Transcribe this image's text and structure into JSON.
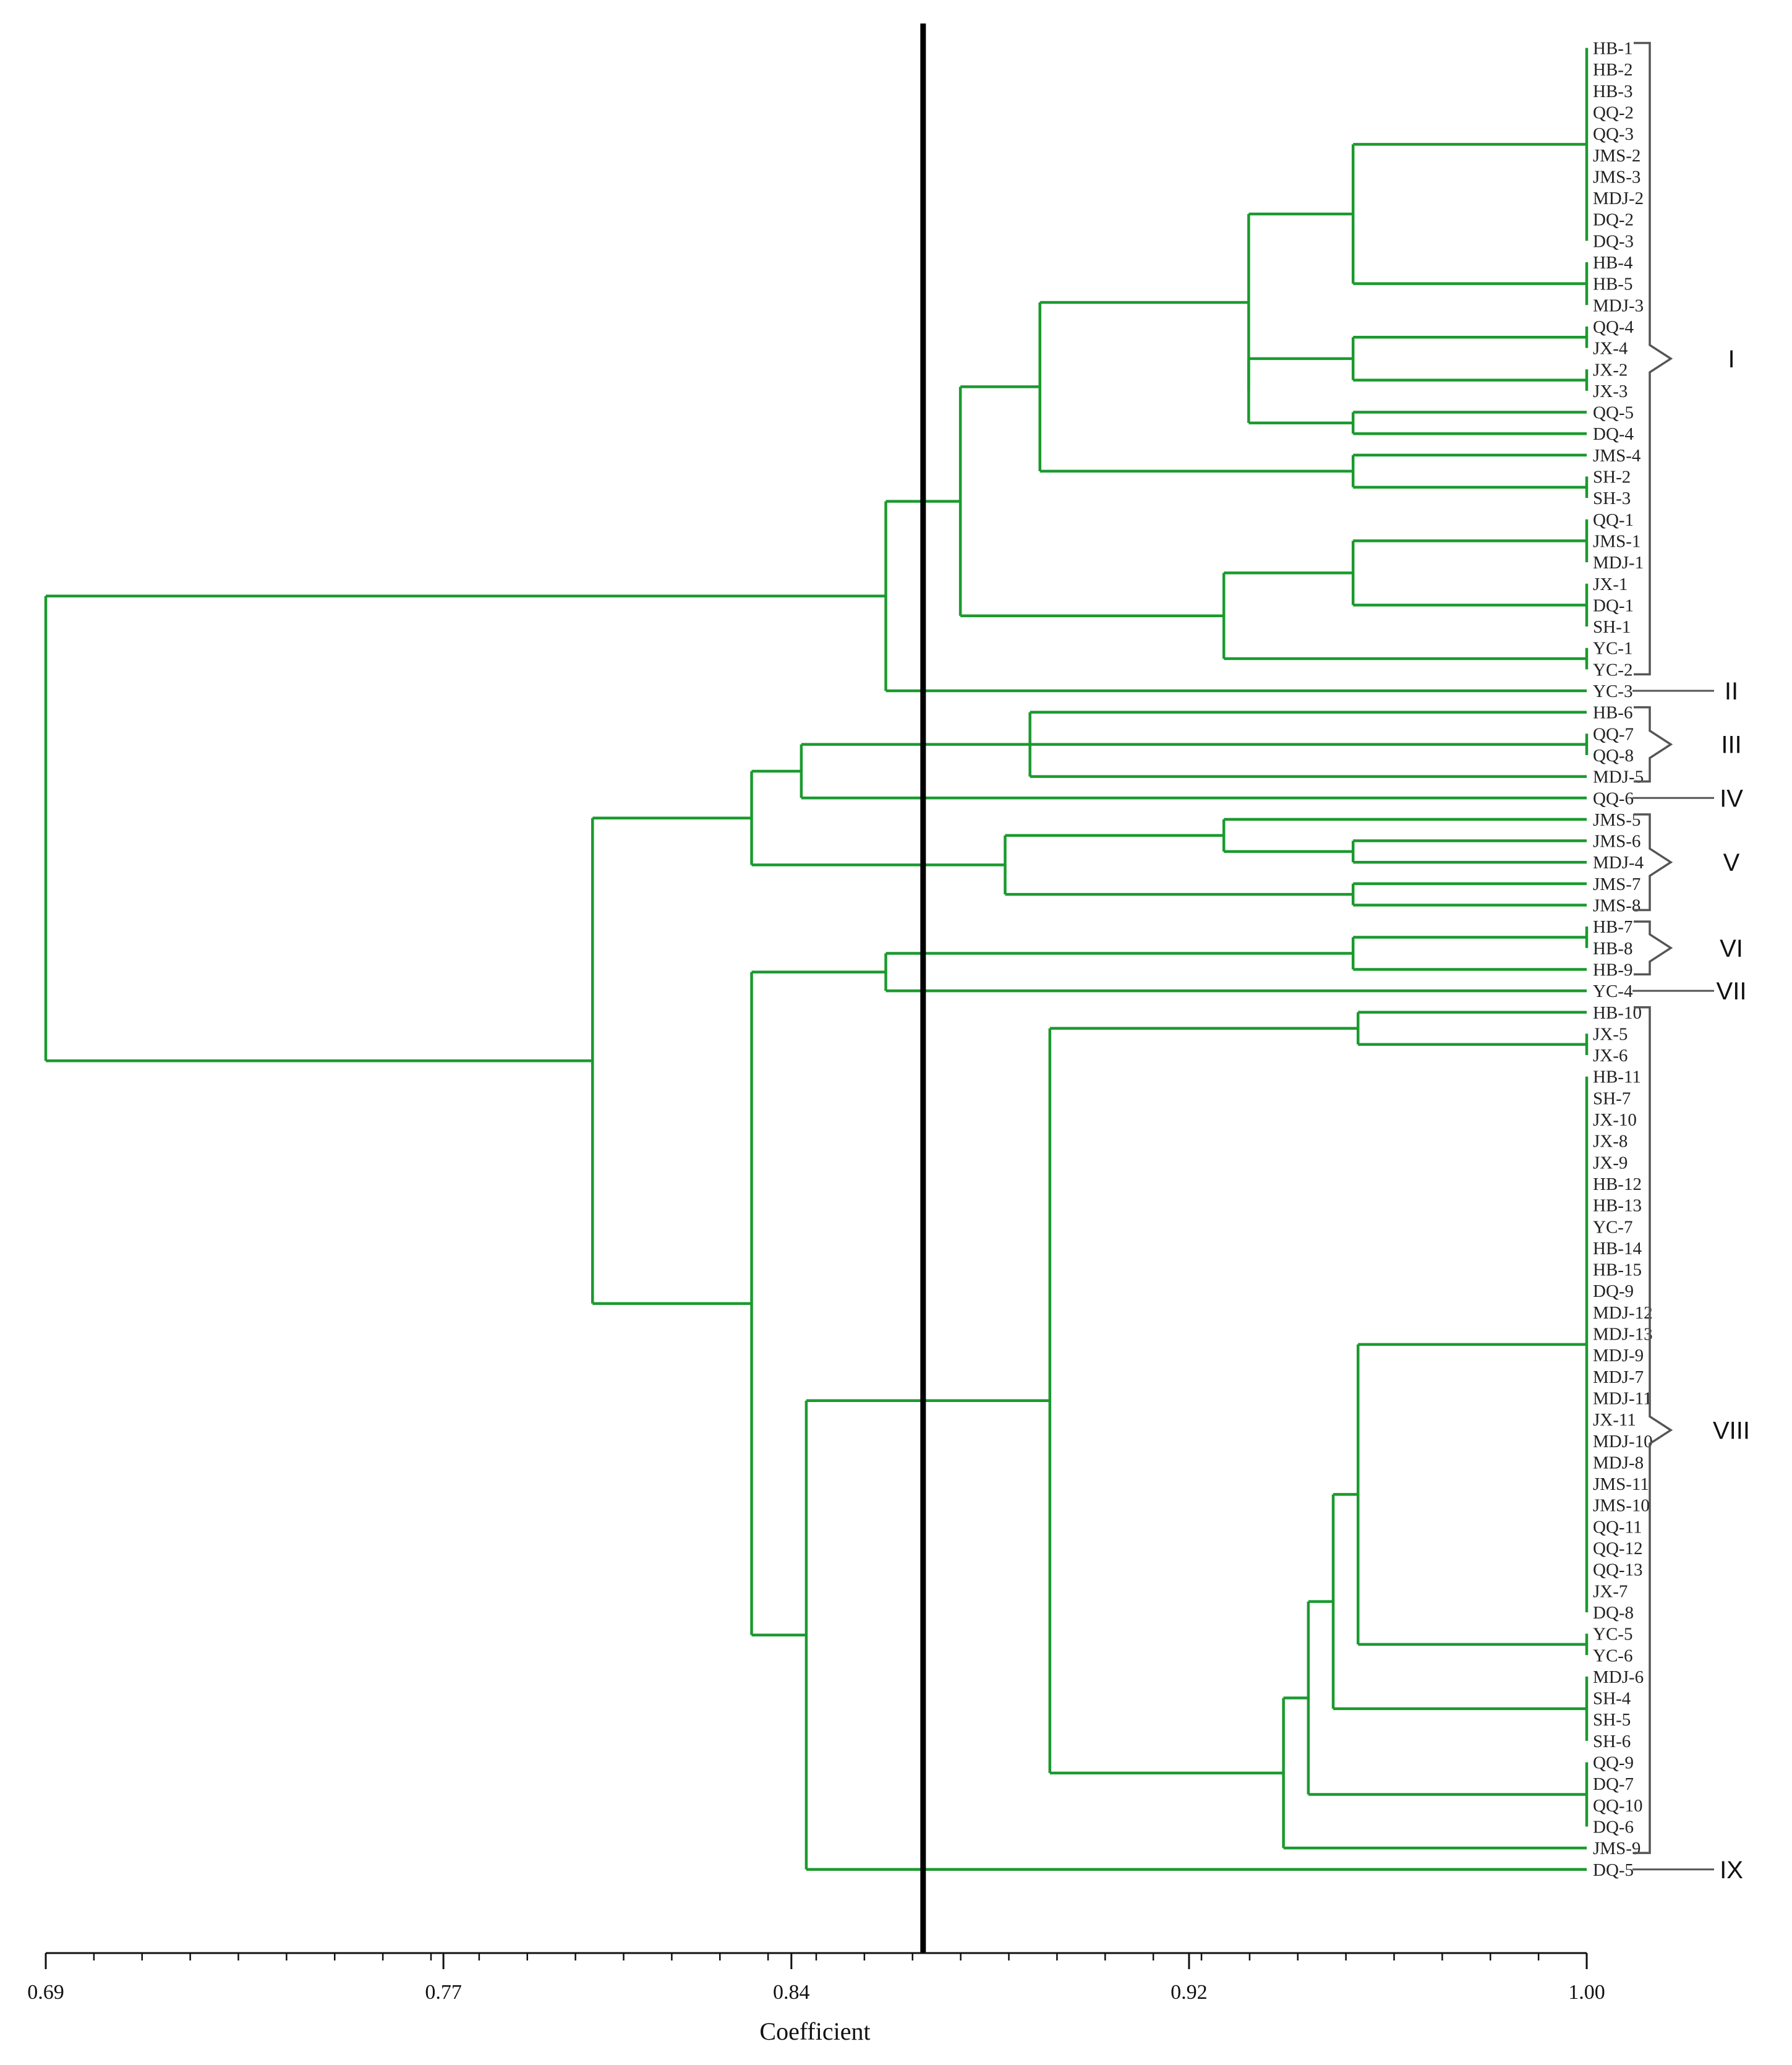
{
  "chart_data": {
    "type": "dendrogram",
    "title": "",
    "xlabel": "Coefficient",
    "xlim": [
      0.69,
      1.0
    ],
    "ticks": [
      "0.69",
      "0.77",
      "0.84",
      "0.92",
      "1.00"
    ],
    "tick_values": [
      0.69,
      0.77,
      0.84,
      0.92,
      1.0
    ],
    "cutoff": 0.8665,
    "colors": {
      "branch": "#1a9a2e",
      "cutoff": "#000000",
      "bracket": "#555555",
      "text": "#222222"
    },
    "leaves": [
      "HB-1",
      "HB-2",
      "HB-3",
      "QQ-2",
      "QQ-3",
      "JMS-2",
      "JMS-3",
      "MDJ-2",
      "DQ-2",
      "DQ-3",
      "HB-4",
      "HB-5",
      "MDJ-3",
      "QQ-4",
      "JX-4",
      "JX-2",
      "JX-3",
      "QQ-5",
      "DQ-4",
      "JMS-4",
      "SH-2",
      "SH-3",
      "QQ-1",
      "JMS-1",
      "MDJ-1",
      "JX-1",
      "DQ-1",
      "SH-1",
      "YC-1",
      "YC-2",
      "YC-3",
      "HB-6",
      "QQ-7",
      "QQ-8",
      "MDJ-5",
      "QQ-6",
      "JMS-5",
      "JMS-6",
      "MDJ-4",
      "JMS-7",
      "JMS-8",
      "HB-7",
      "HB-8",
      "HB-9",
      "YC-4",
      "HB-10",
      "JX-5",
      "JX-6",
      "HB-11",
      "SH-7",
      "JX-10",
      "JX-8",
      "JX-9",
      "HB-12",
      "HB-13",
      "YC-7",
      "HB-14",
      "HB-15",
      "DQ-9",
      "MDJ-12",
      "MDJ-13",
      "MDJ-9",
      "MDJ-7",
      "MDJ-11",
      "JX-11",
      "MDJ-10",
      "MDJ-8",
      "JMS-11",
      "JMS-10",
      "QQ-11",
      "QQ-12",
      "QQ-13",
      "JX-7",
      "DQ-8",
      "YC-5",
      "YC-6",
      "MDJ-6",
      "SH-4",
      "SH-5",
      "SH-6",
      "QQ-9",
      "DQ-7",
      "QQ-10",
      "DQ-6",
      "JMS-9",
      "DQ-5"
    ],
    "merges": [
      {
        "id": "m1",
        "children": [
          "L0",
          "L9"
        ],
        "h": 1.0
      },
      {
        "id": "m2",
        "children": [
          "L10",
          "L12"
        ],
        "h": 1.0
      },
      {
        "id": "m3",
        "children": [
          "m1",
          "m2"
        ],
        "h": 0.953
      },
      {
        "id": "m4",
        "children": [
          "L13",
          "L14"
        ],
        "h": 1.0
      },
      {
        "id": "m5",
        "children": [
          "L15",
          "L16"
        ],
        "h": 1.0
      },
      {
        "id": "m6",
        "children": [
          "m4",
          "m5"
        ],
        "h": 0.953
      },
      {
        "id": "m7",
        "children": [
          "L17",
          "L18"
        ],
        "h": 0.953
      },
      {
        "id": "m8",
        "children": [
          "m6",
          "m7"
        ],
        "h": 0.932
      },
      {
        "id": "m9",
        "children": [
          "m3",
          "m8"
        ],
        "h": 0.932
      },
      {
        "id": "m10",
        "children": [
          "L20",
          "L21"
        ],
        "h": 1.0
      },
      {
        "id": "m11",
        "children": [
          "L19",
          "m10"
        ],
        "h": 0.953
      },
      {
        "id": "m12",
        "children": [
          "m9",
          "m11"
        ],
        "h": 0.89
      },
      {
        "id": "m13",
        "children": [
          "L22",
          "L24"
        ],
        "h": 1.0
      },
      {
        "id": "m14",
        "children": [
          "L25",
          "L27"
        ],
        "h": 1.0
      },
      {
        "id": "m15",
        "children": [
          "m13",
          "m14"
        ],
        "h": 0.953
      },
      {
        "id": "m16",
        "children": [
          "L28",
          "L29"
        ],
        "h": 1.0
      },
      {
        "id": "m17",
        "children": [
          "m15",
          "m16"
        ],
        "h": 0.927
      },
      {
        "id": "m18",
        "children": [
          "m12",
          "m17"
        ],
        "h": 0.874
      },
      {
        "id": "m19",
        "children": [
          "m18",
          "L30"
        ],
        "h": 0.859
      },
      {
        "id": "m20",
        "children": [
          "L32",
          "L33"
        ],
        "h": 1.0
      },
      {
        "id": "m21",
        "children": [
          "L31",
          "m20",
          "L34"
        ],
        "h": 0.888
      },
      {
        "id": "m22",
        "children": [
          "m21",
          "L35"
        ],
        "h": 0.842
      },
      {
        "id": "m23",
        "children": [
          "L37",
          "L38"
        ],
        "h": 0.953
      },
      {
        "id": "m24",
        "children": [
          "L36",
          "m23"
        ],
        "h": 0.927
      },
      {
        "id": "m25",
        "children": [
          "L39",
          "L40"
        ],
        "h": 0.953
      },
      {
        "id": "m26",
        "children": [
          "m24",
          "m25"
        ],
        "h": 0.883
      },
      {
        "id": "m27",
        "children": [
          "m22",
          "m26"
        ],
        "h": 0.832
      },
      {
        "id": "m28",
        "children": [
          "L41",
          "L42"
        ],
        "h": 1.0
      },
      {
        "id": "m29",
        "children": [
          "m28",
          "L43"
        ],
        "h": 0.953
      },
      {
        "id": "m30",
        "children": [
          "m29",
          "L44"
        ],
        "h": 0.859
      },
      {
        "id": "m31",
        "children": [
          "L46",
          "L47"
        ],
        "h": 1.0
      },
      {
        "id": "m32",
        "children": [
          "L45",
          "m31"
        ],
        "h": 0.954
      },
      {
        "id": "m33",
        "children": [
          "L48",
          "L73"
        ],
        "h": 1.0
      },
      {
        "id": "m34",
        "children": [
          "L74",
          "L75"
        ],
        "h": 1.0
      },
      {
        "id": "m35",
        "children": [
          "m33",
          "m34"
        ],
        "h": 0.954
      },
      {
        "id": "m36",
        "children": [
          "L76",
          "L79"
        ],
        "h": 1.0
      },
      {
        "id": "m37",
        "children": [
          "m35",
          "m36"
        ],
        "h": 0.949
      },
      {
        "id": "m38",
        "children": [
          "L80",
          "L83"
        ],
        "h": 1.0
      },
      {
        "id": "m39",
        "children": [
          "m37",
          "m38"
        ],
        "h": 0.944
      },
      {
        "id": "m40",
        "children": [
          "m39",
          "L84"
        ],
        "h": 0.939
      },
      {
        "id": "m41",
        "children": [
          "m32",
          "m40"
        ],
        "h": 0.892
      },
      {
        "id": "m42",
        "children": [
          "m41",
          "L85"
        ],
        "h": 0.843
      },
      {
        "id": "m43",
        "children": [
          "m30",
          "m42"
        ],
        "h": 0.832
      },
      {
        "id": "m44",
        "children": [
          "m27",
          "m43"
        ],
        "h": 0.8
      },
      {
        "id": "m45",
        "children": [
          "m19",
          "m44"
        ],
        "h": 0.69
      }
    ],
    "clusters": [
      {
        "label": "I",
        "from": 0,
        "to": 29
      },
      {
        "label": "II",
        "from": 30,
        "to": 30
      },
      {
        "label": "III",
        "from": 31,
        "to": 34
      },
      {
        "label": "IV",
        "from": 35,
        "to": 35
      },
      {
        "label": "V",
        "from": 36,
        "to": 40
      },
      {
        "label": "VI",
        "from": 41,
        "to": 43
      },
      {
        "label": "VII",
        "from": 44,
        "to": 44
      },
      {
        "label": "VIII",
        "from": 45,
        "to": 84
      },
      {
        "label": "IX",
        "from": 85,
        "to": 85
      }
    ]
  }
}
